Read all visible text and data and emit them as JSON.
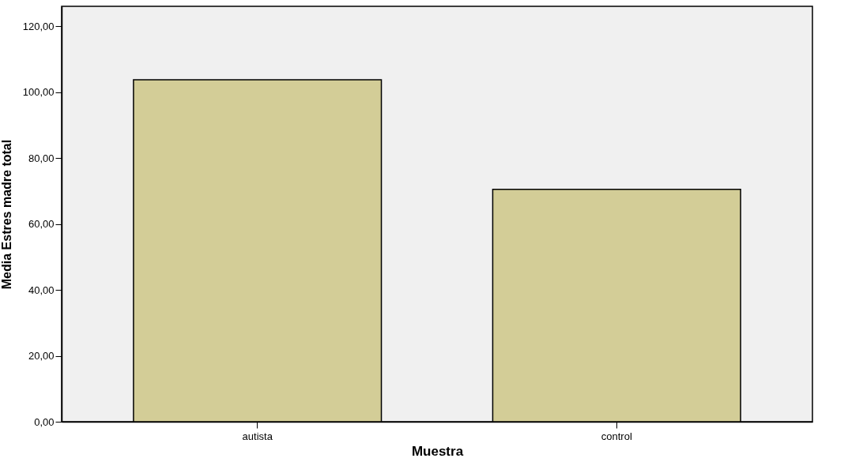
{
  "chart_data": {
    "type": "bar",
    "xlabel": "Muestra",
    "ylabel": "Media Estres madre total",
    "categories": [
      "autista",
      "control"
    ],
    "values": [
      103.7,
      70.5
    ],
    "color": "#d3cd97",
    "ylim": [
      0,
      126
    ],
    "yticks": [
      {
        "value": 0,
        "label": "0,00"
      },
      {
        "value": 20,
        "label": "20,00"
      },
      {
        "value": 40,
        "label": "40,00"
      },
      {
        "value": 60,
        "label": "60,00"
      },
      {
        "value": 80,
        "label": "80,00"
      },
      {
        "value": 100,
        "label": "100,00"
      },
      {
        "value": 120,
        "label": "120,00"
      }
    ],
    "grid": false
  }
}
